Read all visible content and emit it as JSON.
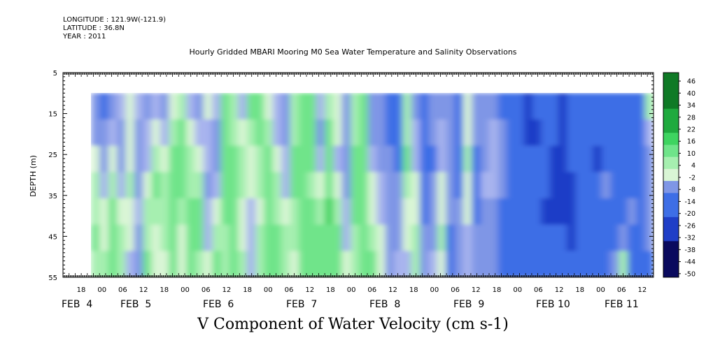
{
  "header": {
    "longitude": "LONGITUDE : 121.9W(-121.9)",
    "latitude": "LATITUDE : 36.8N",
    "year": "YEAR : 2011"
  },
  "colors": {
    "ramp": [
      "#0a0a5e",
      "#1f3ec7",
      "#3e6ee6",
      "#7f96e6",
      "#a8b4ee",
      "#c9ccf5",
      "#d9f5d5",
      "#a6efb0",
      "#6fe48a",
      "#3ed460",
      "#1faa3e",
      "#0f7a26",
      "#0a4a18"
    ]
  },
  "chart_data": {
    "type": "heatmap",
    "title": "Hourly Gridded MBARI Mooring M0 Sea Water Temperature and Salinity Observations",
    "xlabel": "V Component of Water Velocity (cm s-1)",
    "ylabel": "DEPTH (m)",
    "ylim": [
      55,
      5
    ],
    "y_ticks": [
      "5",
      "15",
      "25",
      "35",
      "45",
      "55"
    ],
    "x_hour_ticks": [
      "18",
      "00",
      "06",
      "12",
      "18",
      "00",
      "06",
      "12",
      "18",
      "00",
      "06",
      "12",
      "18",
      "00",
      "06",
      "12",
      "18",
      "00",
      "06",
      "12",
      "18",
      "00",
      "06",
      "12",
      "18",
      "00",
      "06",
      "12",
      "18",
      "00",
      "06",
      "12"
    ],
    "x_day_labels": [
      "FEB  4",
      "FEB  5",
      "FEB  6",
      "FEB  7",
      "FEB  8",
      "FEB  9",
      "FEB 10",
      "FEB 11"
    ],
    "data_depth_range": [
      10,
      55
    ],
    "colorbar_ticks": [
      "46",
      "40",
      "34",
      "28",
      "22",
      "16",
      "10",
      "4",
      "-2",
      "-8",
      "-14",
      "-20",
      "-26",
      "-32",
      "-38",
      "-44",
      "-50"
    ],
    "colorbar_range": [
      -50,
      52
    ],
    "time_columns": 65,
    "values": [
      [
        -10,
        -6,
        2,
        5,
        8,
        10,
        8
      ],
      [
        -14,
        -10,
        -6,
        -2,
        2,
        4,
        6
      ],
      [
        -6,
        -2,
        2,
        6,
        10,
        10,
        12
      ],
      [
        -4,
        -8,
        -6,
        -2,
        2,
        6,
        8
      ],
      [
        2,
        4,
        4,
        6,
        4,
        2,
        -2
      ],
      [
        -4,
        -6,
        -8,
        -6,
        -4,
        -6,
        -8
      ],
      [
        -6,
        -4,
        -2,
        4,
        6,
        8,
        10
      ],
      [
        -2,
        4,
        8,
        10,
        6,
        4,
        2
      ],
      [
        -8,
        -4,
        2,
        6,
        8,
        6,
        4
      ],
      [
        2,
        6,
        10,
        12,
        14,
        12,
        10
      ],
      [
        8,
        10,
        12,
        10,
        6,
        4,
        2
      ],
      [
        -2,
        2,
        6,
        8,
        10,
        12,
        14
      ],
      [
        -6,
        -4,
        2,
        6,
        10,
        12,
        8
      ],
      [
        2,
        -2,
        -4,
        -6,
        -4,
        -2,
        2
      ],
      [
        -4,
        -8,
        -6,
        -2,
        4,
        8,
        10
      ],
      [
        10,
        12,
        14,
        12,
        10,
        8,
        6
      ],
      [
        6,
        8,
        10,
        12,
        14,
        12,
        10
      ],
      [
        -4,
        2,
        6,
        8,
        4,
        2,
        6
      ],
      [
        12,
        8,
        4,
        2,
        -2,
        -4,
        -2
      ],
      [
        10,
        12,
        8,
        6,
        4,
        6,
        8
      ],
      [
        4,
        8,
        10,
        14,
        12,
        10,
        12
      ],
      [
        -4,
        -2,
        2,
        6,
        8,
        10,
        12
      ],
      [
        -8,
        -6,
        -4,
        -2,
        2,
        6,
        8
      ],
      [
        6,
        8,
        10,
        12,
        8,
        6,
        4
      ],
      [
        10,
        12,
        14,
        12,
        10,
        12,
        14
      ],
      [
        14,
        12,
        10,
        8,
        10,
        12,
        14
      ],
      [
        -4,
        -6,
        -2,
        4,
        8,
        10,
        12
      ],
      [
        8,
        10,
        12,
        14,
        16,
        14,
        12
      ],
      [
        4,
        2,
        -2,
        2,
        6,
        10,
        12
      ],
      [
        -6,
        -8,
        -10,
        -6,
        -4,
        -2,
        2
      ],
      [
        6,
        8,
        10,
        12,
        10,
        8,
        6
      ],
      [
        10,
        12,
        14,
        12,
        10,
        12,
        14
      ],
      [
        -8,
        -6,
        -4,
        2,
        4,
        8,
        10
      ],
      [
        -10,
        -8,
        -6,
        -4,
        -2,
        2,
        4
      ],
      [
        -14,
        -12,
        -10,
        -8,
        -6,
        -8,
        -10
      ],
      [
        -12,
        -14,
        -12,
        -10,
        -8,
        -6,
        -4
      ],
      [
        6,
        8,
        10,
        8,
        4,
        2,
        -2
      ],
      [
        -6,
        -4,
        -2,
        2,
        4,
        6,
        8
      ],
      [
        -12,
        -14,
        -16,
        -14,
        -12,
        -10,
        -8
      ],
      [
        -8,
        -10,
        -12,
        -10,
        -8,
        -6,
        -4
      ],
      [
        -6,
        -4,
        -2,
        2,
        4,
        6,
        4
      ],
      [
        -10,
        -8,
        -6,
        -8,
        -10,
        -12,
        -14
      ],
      [
        -14,
        -16,
        -14,
        -12,
        -10,
        -8,
        -6
      ],
      [
        2,
        4,
        6,
        4,
        2,
        -2,
        -4
      ],
      [
        -8,
        -10,
        -12,
        -14,
        -12,
        -10,
        -8
      ],
      [
        -10,
        -8,
        -6,
        -4,
        -6,
        -8,
        -10
      ],
      [
        -6,
        -4,
        -2,
        -4,
        -6,
        -8,
        -6
      ],
      [
        -12,
        -10,
        -8,
        -10,
        -12,
        -14,
        -12
      ],
      [
        -20,
        -18,
        -16,
        -14,
        -12,
        -14,
        -16
      ],
      [
        -16,
        -18,
        -20,
        -18,
        -16,
        -14,
        -12
      ],
      [
        -24,
        -22,
        -20,
        -18,
        -16,
        -18,
        -20
      ],
      [
        -20,
        -22,
        -20,
        -18,
        -16,
        -14,
        -12
      ],
      [
        -14,
        -16,
        -18,
        -20,
        -22,
        -20,
        -18
      ],
      [
        -18,
        -20,
        -22,
        -24,
        -22,
        -20,
        -18
      ],
      [
        -22,
        -24,
        -26,
        -24,
        -22,
        -20,
        -18
      ],
      [
        -16,
        -18,
        -20,
        -22,
        -24,
        -22,
        -20
      ],
      [
        -14,
        -12,
        -14,
        -16,
        -18,
        -16,
        -14
      ],
      [
        -20,
        -18,
        -16,
        -14,
        -12,
        -14,
        -16
      ],
      [
        -18,
        -20,
        -22,
        -20,
        -18,
        -16,
        -14
      ],
      [
        -16,
        -14,
        -12,
        -10,
        -12,
        -14,
        -16
      ],
      [
        -14,
        -16,
        -18,
        -16,
        -14,
        -12,
        -10
      ],
      [
        -12,
        -14,
        -16,
        -14,
        -12,
        -8,
        6
      ],
      [
        -18,
        -16,
        -14,
        -12,
        -10,
        -12,
        -14
      ],
      [
        -16,
        -18,
        -20,
        -18,
        -16,
        -14,
        -12
      ],
      [
        6,
        -4,
        -8,
        -10,
        -8,
        -10,
        -12
      ]
    ]
  }
}
